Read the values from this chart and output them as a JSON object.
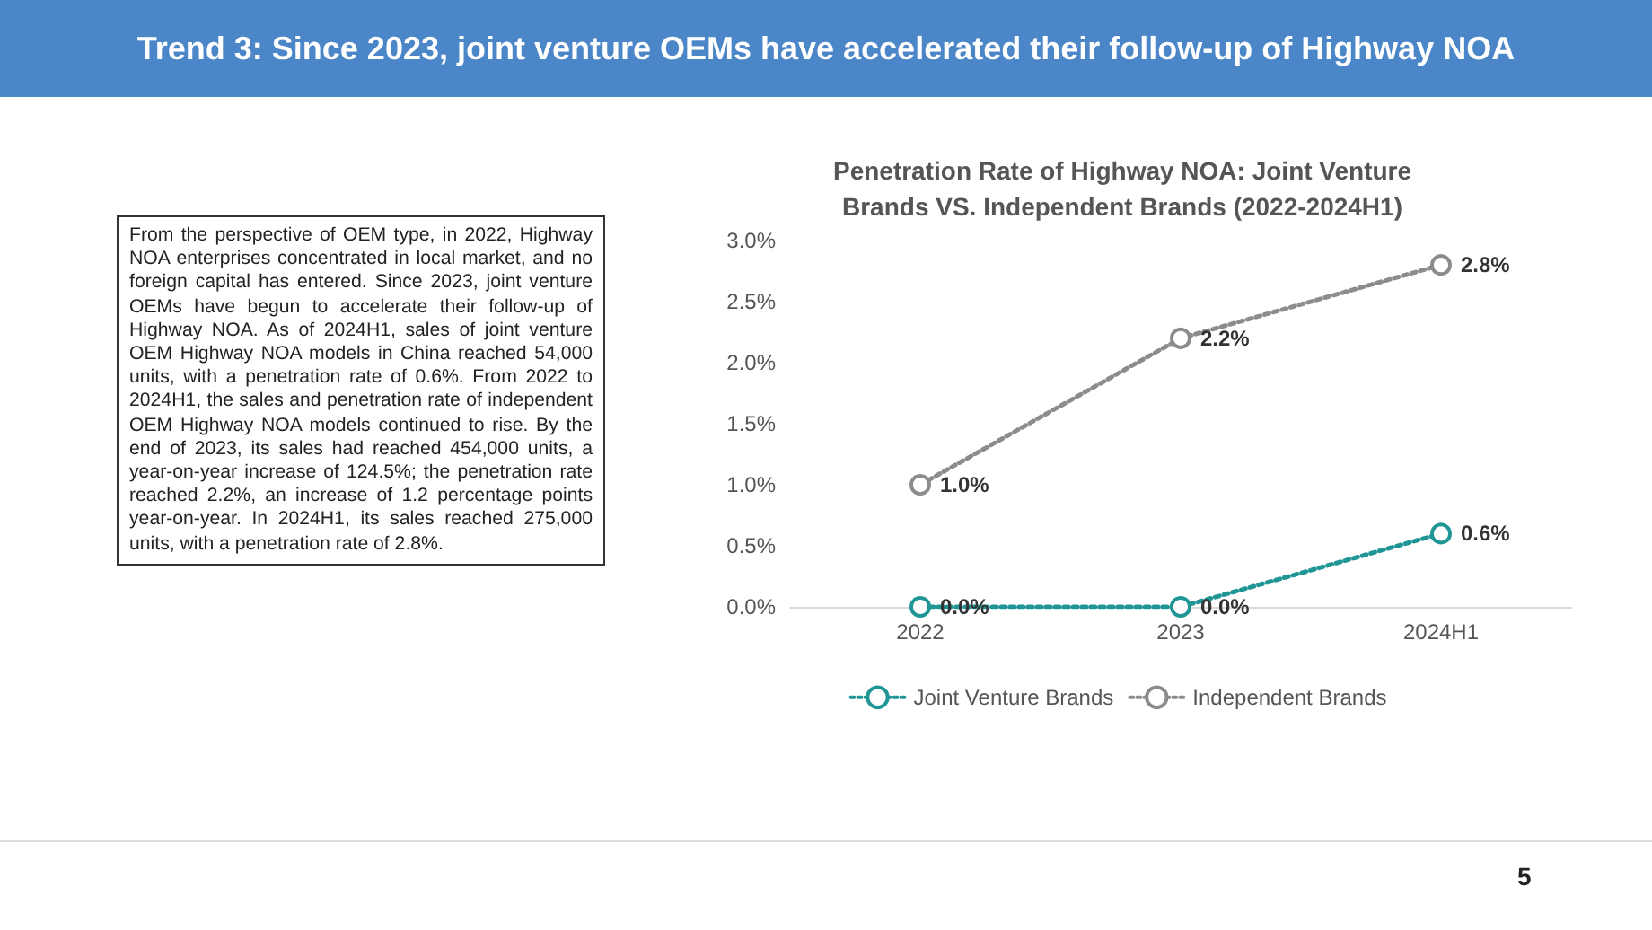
{
  "chart_data": {
    "type": "line",
    "title": "Penetration Rate of Highway NOA: Joint Venture\nBrands VS. Independent Brands (2022-2024H1)",
    "categories": [
      "2022",
      "2023",
      "2024H1"
    ],
    "series": [
      {
        "name": "Joint Venture Brands",
        "color": "#1f9595",
        "values": [
          0.0,
          0.0,
          0.6
        ],
        "value_labels": [
          "0.0%",
          "0.0%",
          "0.6%"
        ]
      },
      {
        "name": "Independent Brands",
        "color": "#8c8c8c",
        "values": [
          1.0,
          2.2,
          2.8
        ],
        "value_labels": [
          "1.0%",
          "2.2%",
          "2.8%"
        ]
      }
    ],
    "ylim": [
      0,
      3
    ],
    "yticks": [
      {
        "value": 0,
        "label": "0.0%"
      },
      {
        "value": 0.5,
        "label": "0.5%"
      },
      {
        "value": 1,
        "label": "1.0%"
      },
      {
        "value": 1.5,
        "label": "1.5%"
      },
      {
        "value": 2,
        "label": "2.0%"
      },
      {
        "value": 2.5,
        "label": "2.5%"
      },
      {
        "value": 3,
        "label": "3.0%"
      }
    ],
    "grid": false,
    "legend": "bottom",
    "marker": "circle",
    "line_style": "dotted",
    "annotations": [
      "Trend 3: Since 2023, joint venture OEMs have accelerated their follow-up of Highway NOA",
      "From the perspective of OEM type, in 2022, Highway NOA enterprises concentrated in local market, and no foreign capital has entered. Since 2023, joint venture OEMs have begun to accelerate their follow-up of Highway NOA. As of 2024H1, sales of joint venture OEM Highway NOA models in China reached 54,000 units, with a penetration rate of 0.6%. From 2022 to 2024H1, the sales and penetration rate of independent OEM Highway NOA models continued to rise. By the end of 2023, its sales had reached 454,000 units, a year-on-year increase of 124.5%; the penetration rate reached 2.2%, an increase of 1.2 percentage points year-on-year. In 2024H1, its sales reached 275,000 units, with a penetration rate of 2.8%.",
      "5"
    ]
  }
}
